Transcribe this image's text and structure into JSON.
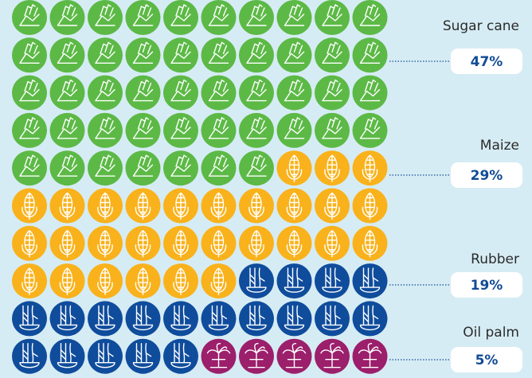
{
  "chart_data": {
    "type": "waffle",
    "rows": 10,
    "columns": 10,
    "series": [
      {
        "name": "Sugar cane",
        "color": "#5cb946",
        "values": [
          47
        ],
        "value_labels": [
          "47%"
        ]
      },
      {
        "name": "Maize",
        "color": "#f9b21b",
        "values": [
          29
        ],
        "value_labels": [
          "29%"
        ]
      },
      {
        "name": "Rubber",
        "color": "#0f4c9c",
        "values": [
          19
        ],
        "value_labels": [
          "19%"
        ]
      },
      {
        "name": "Oil palm",
        "color": "#9b1f6b",
        "values": [
          5
        ],
        "value_labels": [
          "5%"
        ]
      }
    ]
  }
}
